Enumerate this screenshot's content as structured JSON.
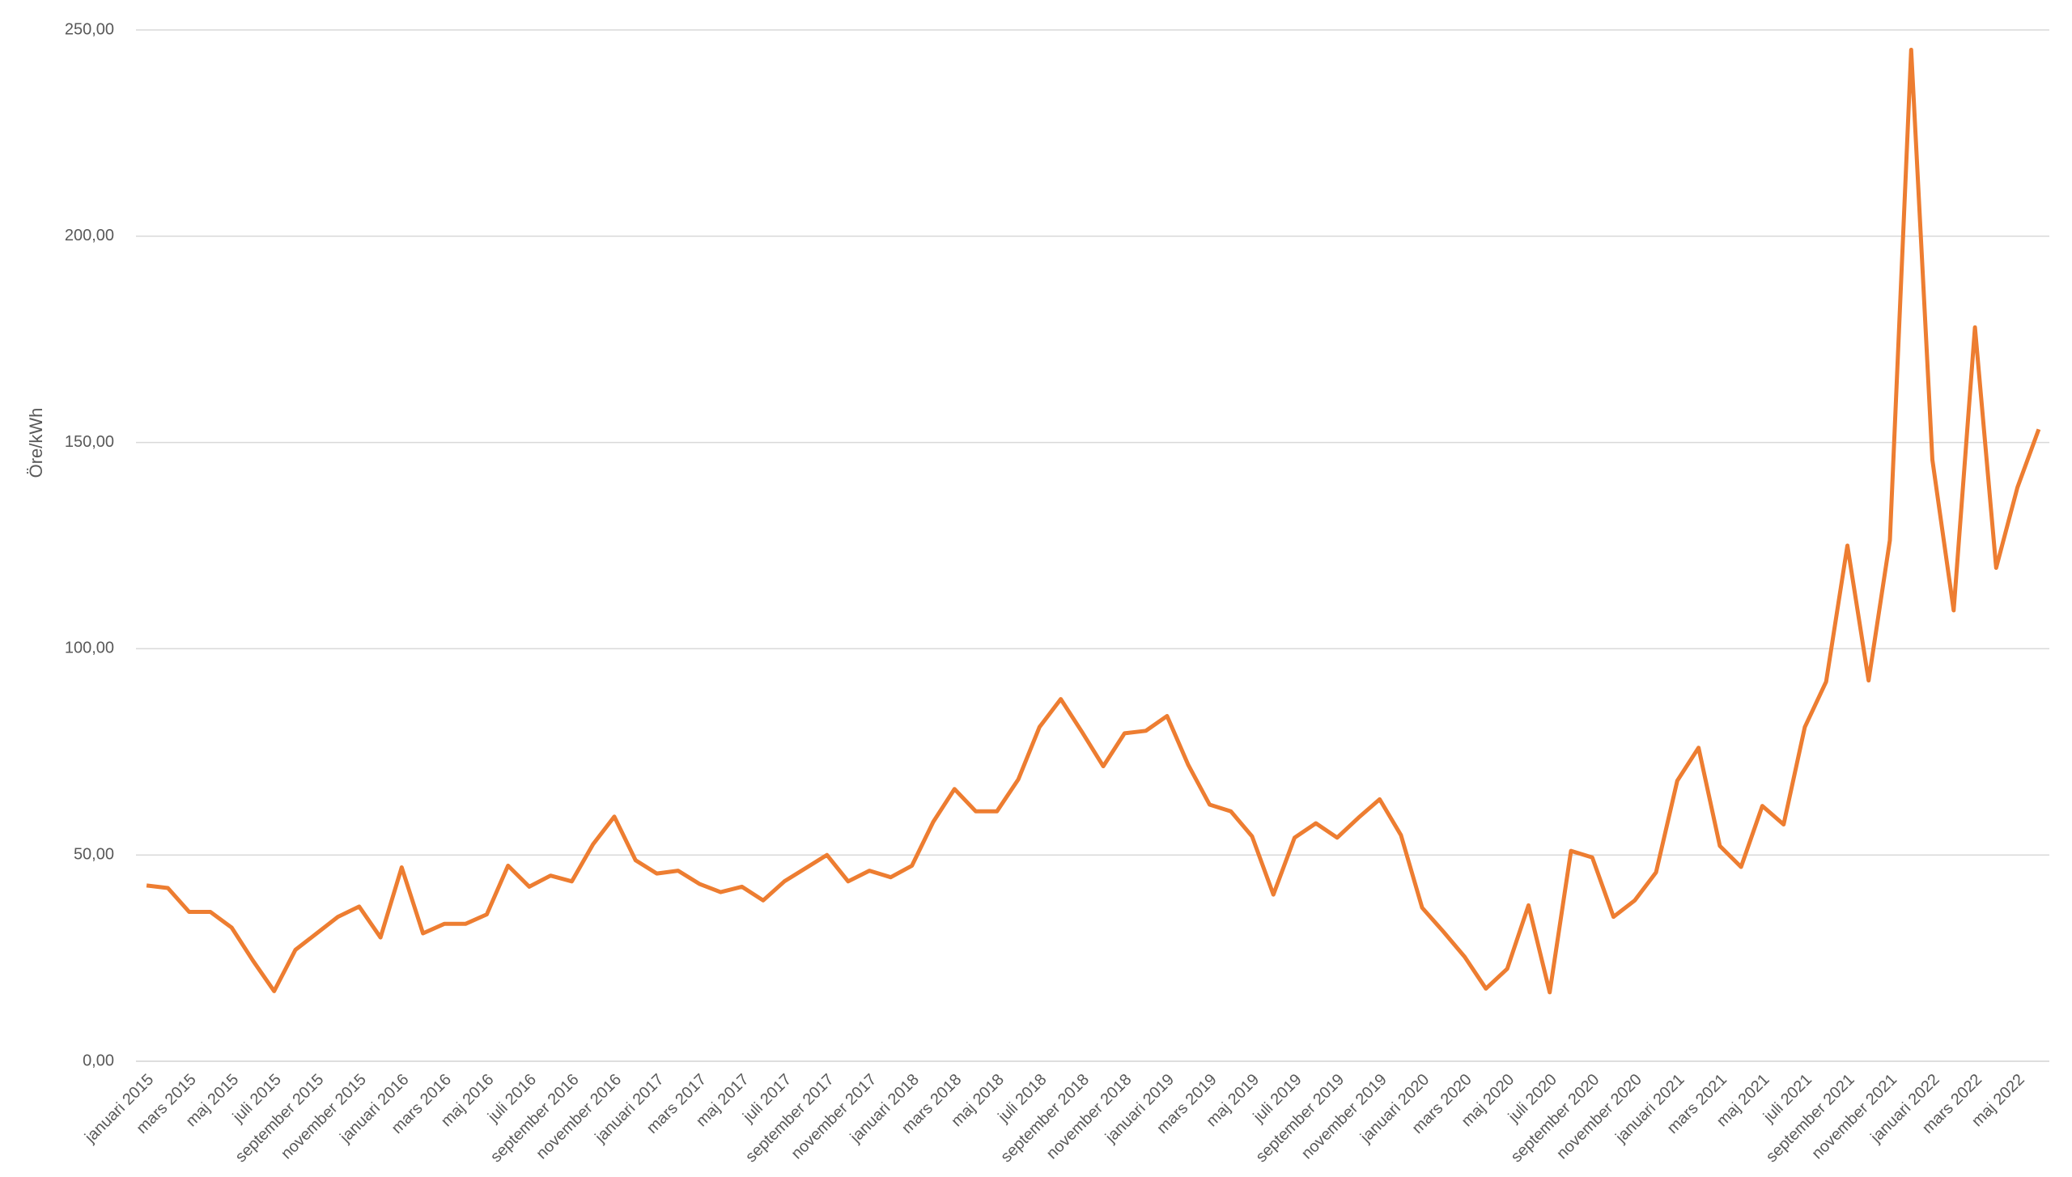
{
  "chart_data": {
    "type": "line",
    "y_label": "Öre/kWh",
    "categories": [
      "januari 2015",
      null,
      "mars 2015",
      null,
      "maj 2015",
      null,
      "juli 2015",
      null,
      "september 2015",
      null,
      "november 2015",
      null,
      "januari 2016",
      null,
      "mars 2016",
      null,
      "maj 2016",
      null,
      "juli 2016",
      null,
      "september 2016",
      null,
      "november 2016",
      null,
      "januari 2017",
      null,
      "mars 2017",
      null,
      "maj 2017",
      null,
      "juli 2017",
      null,
      "september 2017",
      null,
      "november 2017",
      null,
      "januari 2018",
      null,
      "mars 2018",
      null,
      "maj 2018",
      null,
      "juli 2018",
      null,
      "september 2018",
      null,
      "november 2018",
      null,
      "januari 2019",
      null,
      "mars 2019",
      null,
      "maj 2019",
      null,
      "juli 2019",
      null,
      "september 2019",
      null,
      "november 2019",
      null,
      "januari 2020",
      null,
      "mars 2020",
      null,
      "maj 2020",
      null,
      "juli 2020",
      null,
      "september 2020",
      null,
      "november 2020",
      null,
      "januari 2021",
      null,
      "mars 2021",
      null,
      "maj 2021",
      null,
      "juli 2021",
      null,
      "september 2021",
      null,
      "november 2021",
      null,
      "januari 2022",
      null,
      "mars 2022",
      null,
      "maj 2022",
      null
    ],
    "series": [
      {
        "color": "#ed7d31",
        "values": [
          42.6,
          42,
          36.2,
          36.2,
          32.4,
          24.4,
          17,
          27,
          31,
          35,
          37.5,
          30,
          47,
          31,
          33.3,
          33.3,
          35.6,
          47.4,
          42.3,
          45,
          43.6,
          52.6,
          59.3,
          48.7,
          45.5,
          46.2,
          43,
          41,
          42.3,
          39,
          43.6,
          46.8,
          50,
          43.6,
          46.2,
          44.6,
          47.4,
          58,
          66,
          60.6,
          60.6,
          68.3,
          81,
          87.8,
          79.8,
          71.5,
          79.5,
          80.1,
          83.7,
          71.8,
          62.2,
          60.6,
          54.5,
          40.4,
          54.2,
          57.7,
          54.2,
          59,
          63.5,
          54.8,
          37.2,
          31.4,
          25.3,
          17.6,
          22.4,
          37.8,
          16.7,
          51,
          49.4,
          35,
          39,
          45.8,
          68,
          76,
          52.2,
          47.1,
          61.9,
          57.4,
          81,
          92,
          125,
          92.3,
          126.3,
          245.2,
          145.8,
          109.3,
          177.9,
          119.6,
          139.1,
          153.2
        ]
      }
    ],
    "ylim": [
      0,
      250
    ],
    "yticks": [
      {
        "value": 0,
        "label": "0,00"
      },
      {
        "value": 50,
        "label": "50,00"
      },
      {
        "value": 100,
        "label": "100,00"
      },
      {
        "value": 150,
        "label": "150,00"
      },
      {
        "value": 200,
        "label": "200,00"
      },
      {
        "value": 250,
        "label": "250,00"
      }
    ],
    "grid": true
  }
}
